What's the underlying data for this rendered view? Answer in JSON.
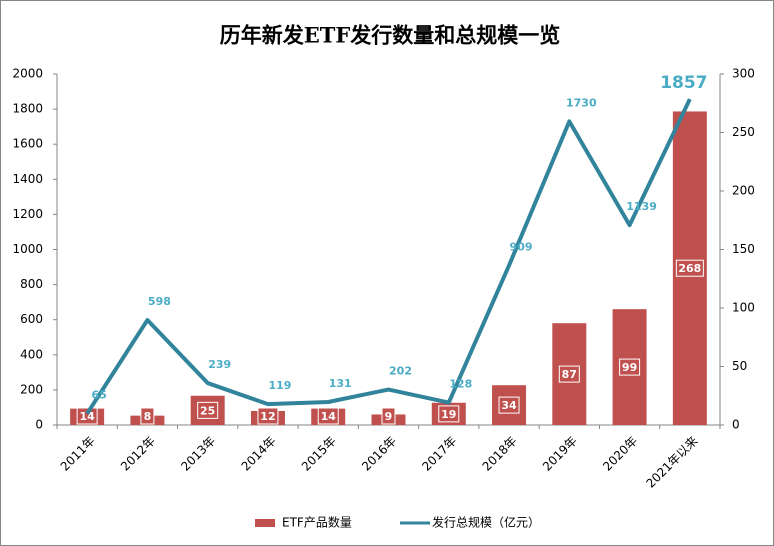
{
  "chart_data": {
    "type": "combo",
    "title": "历年新发ETF发行数量和总规模一览",
    "categories": [
      "2011年",
      "2012年",
      "2013年",
      "2014年",
      "2015年",
      "2016年",
      "2017年",
      "2018年",
      "2019年",
      "2020年",
      "2021年以来"
    ],
    "series": [
      {
        "name": "ETF产品数量",
        "type": "bar",
        "axis": "y2",
        "color": "#c0504d",
        "values": [
          14,
          8,
          25,
          12,
          14,
          9,
          19,
          34,
          87,
          99,
          268
        ]
      },
      {
        "name": "发行总规模（亿元）",
        "type": "line",
        "axis": "y",
        "color": "#31849b",
        "values": [
          65,
          598,
          239,
          119,
          131,
          202,
          128,
          909,
          1730,
          1139,
          1857
        ]
      }
    ],
    "ylim": [
      0,
      2000
    ],
    "yticks": [
      0,
      200,
      400,
      600,
      800,
      1000,
      1200,
      1400,
      1600,
      1800,
      2000
    ],
    "y2lim": [
      0,
      300
    ],
    "y2ticks": [
      0,
      50,
      100,
      150,
      200,
      250,
      300
    ],
    "grid": false,
    "legend": "bottom"
  }
}
